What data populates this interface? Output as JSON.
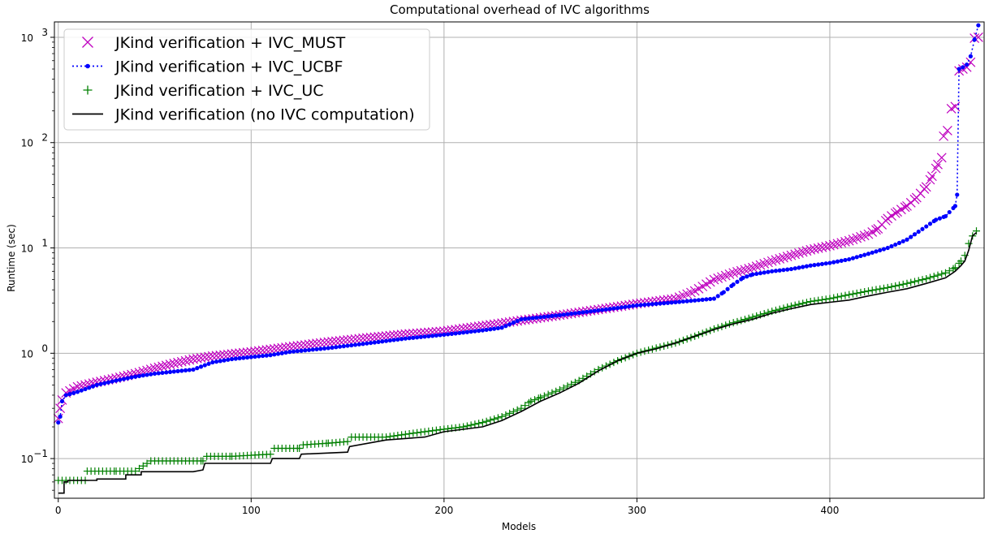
{
  "chart_data": {
    "type": "line",
    "title": "Computational overhead of IVC algorithms",
    "xlabel": "Models",
    "ylabel": "Runtime (sec)",
    "xlim": [
      -2,
      480
    ],
    "ylim": [
      0.042,
      1400
    ],
    "yscale": "log",
    "grid": true,
    "legend_position": "top-left",
    "x_ticks": [
      0,
      100,
      200,
      300,
      400
    ],
    "x_tick_labels": [
      "0",
      "100",
      "200",
      "300",
      "400"
    ],
    "y_ticks": [
      0.1,
      1,
      10,
      100,
      1000
    ],
    "y_tick_labels": [
      {
        "base": "10",
        "exp": "−1"
      },
      {
        "base": "10",
        "exp": "0"
      },
      {
        "base": "10",
        "exp": "1"
      },
      {
        "base": "10",
        "exp": "2"
      },
      {
        "base": "10",
        "exp": "3"
      }
    ],
    "series": [
      {
        "name": "JKind verification + IVC_MUST",
        "color": "#bf00bf",
        "marker": "x",
        "line": "none",
        "points": [
          [
            0,
            0.24
          ],
          [
            1,
            0.3
          ],
          [
            2,
            0.36
          ],
          [
            4,
            0.42
          ],
          [
            10,
            0.48
          ],
          [
            20,
            0.53
          ],
          [
            30,
            0.58
          ],
          [
            40,
            0.64
          ],
          [
            50,
            0.72
          ],
          [
            60,
            0.8
          ],
          [
            70,
            0.88
          ],
          [
            80,
            0.94
          ],
          [
            100,
            1.03
          ],
          [
            120,
            1.15
          ],
          [
            140,
            1.28
          ],
          [
            160,
            1.4
          ],
          [
            180,
            1.52
          ],
          [
            200,
            1.62
          ],
          [
            220,
            1.82
          ],
          [
            240,
            2.05
          ],
          [
            260,
            2.3
          ],
          [
            280,
            2.6
          ],
          [
            300,
            2.95
          ],
          [
            320,
            3.3
          ],
          [
            330,
            3.9
          ],
          [
            340,
            5.0
          ],
          [
            350,
            5.8
          ],
          [
            360,
            6.5
          ],
          [
            370,
            7.5
          ],
          [
            380,
            8.5
          ],
          [
            390,
            9.6
          ],
          [
            400,
            10.5
          ],
          [
            410,
            11.7
          ],
          [
            420,
            13.5
          ],
          [
            425,
            15.2
          ],
          [
            430,
            19.0
          ],
          [
            435,
            22.0
          ],
          [
            440,
            25.0
          ],
          [
            445,
            30.0
          ],
          [
            450,
            38.0
          ],
          [
            453,
            48.0
          ],
          [
            456,
            62.0
          ],
          [
            458,
            72.0
          ],
          [
            459,
            115.0
          ],
          [
            461,
            130.0
          ],
          [
            463,
            210.0
          ],
          [
            465,
            220.0
          ],
          [
            467,
            480.0
          ],
          [
            469,
            500.0
          ],
          [
            471,
            520.0
          ],
          [
            473,
            580.0
          ],
          [
            475,
            980.0
          ],
          [
            477,
            1000.0
          ]
        ]
      },
      {
        "name": "JKind verification + IVC_UCBF",
        "color": "#0000ff",
        "marker": "dot",
        "line": "dotted",
        "points": [
          [
            0,
            0.22
          ],
          [
            1,
            0.25
          ],
          [
            2,
            0.35
          ],
          [
            4,
            0.4
          ],
          [
            10,
            0.43
          ],
          [
            20,
            0.5
          ],
          [
            30,
            0.55
          ],
          [
            40,
            0.6
          ],
          [
            50,
            0.64
          ],
          [
            60,
            0.67
          ],
          [
            70,
            0.7
          ],
          [
            80,
            0.82
          ],
          [
            90,
            0.88
          ],
          [
            100,
            0.92
          ],
          [
            110,
            0.96
          ],
          [
            120,
            1.03
          ],
          [
            140,
            1.12
          ],
          [
            160,
            1.24
          ],
          [
            180,
            1.38
          ],
          [
            200,
            1.5
          ],
          [
            220,
            1.65
          ],
          [
            230,
            1.75
          ],
          [
            240,
            2.1
          ],
          [
            260,
            2.3
          ],
          [
            280,
            2.55
          ],
          [
            300,
            2.85
          ],
          [
            320,
            3.05
          ],
          [
            340,
            3.3
          ],
          [
            345,
            3.8
          ],
          [
            350,
            4.5
          ],
          [
            355,
            5.2
          ],
          [
            360,
            5.6
          ],
          [
            370,
            6.0
          ],
          [
            380,
            6.3
          ],
          [
            390,
            6.8
          ],
          [
            400,
            7.2
          ],
          [
            410,
            7.8
          ],
          [
            420,
            8.8
          ],
          [
            430,
            10.0
          ],
          [
            440,
            12.0
          ],
          [
            450,
            16.0
          ],
          [
            455,
            18.5
          ],
          [
            460,
            20.0
          ],
          [
            465,
            25.0
          ],
          [
            466,
            32.0
          ],
          [
            467,
            500.0
          ],
          [
            469,
            520.0
          ],
          [
            471,
            550.0
          ],
          [
            473,
            660.0
          ],
          [
            475,
            950.0
          ],
          [
            477,
            1300.0
          ]
        ]
      },
      {
        "name": "JKind verification + IVC_UC",
        "color": "#008000",
        "marker": "plus",
        "line": "none",
        "points": [
          [
            0,
            0.062
          ],
          [
            10,
            0.062
          ],
          [
            14,
            0.062
          ],
          [
            15,
            0.076
          ],
          [
            30,
            0.076
          ],
          [
            40,
            0.076
          ],
          [
            44,
            0.085
          ],
          [
            48,
            0.095
          ],
          [
            60,
            0.095
          ],
          [
            75,
            0.095
          ],
          [
            77,
            0.105
          ],
          [
            90,
            0.105
          ],
          [
            110,
            0.11
          ],
          [
            112,
            0.125
          ],
          [
            125,
            0.125
          ],
          [
            127,
            0.135
          ],
          [
            140,
            0.14
          ],
          [
            150,
            0.145
          ],
          [
            152,
            0.16
          ],
          [
            170,
            0.16
          ],
          [
            180,
            0.17
          ],
          [
            190,
            0.18
          ],
          [
            200,
            0.19
          ],
          [
            210,
            0.2
          ],
          [
            220,
            0.22
          ],
          [
            230,
            0.25
          ],
          [
            240,
            0.3
          ],
          [
            245,
            0.35
          ],
          [
            250,
            0.38
          ],
          [
            260,
            0.45
          ],
          [
            270,
            0.55
          ],
          [
            280,
            0.7
          ],
          [
            290,
            0.85
          ],
          [
            300,
            1.0
          ],
          [
            310,
            1.12
          ],
          [
            320,
            1.25
          ],
          [
            330,
            1.45
          ],
          [
            340,
            1.7
          ],
          [
            350,
            1.95
          ],
          [
            360,
            2.2
          ],
          [
            370,
            2.5
          ],
          [
            380,
            2.8
          ],
          [
            390,
            3.1
          ],
          [
            400,
            3.3
          ],
          [
            410,
            3.6
          ],
          [
            420,
            3.9
          ],
          [
            430,
            4.2
          ],
          [
            440,
            4.6
          ],
          [
            450,
            5.1
          ],
          [
            460,
            5.8
          ],
          [
            465,
            6.5
          ],
          [
            468,
            7.5
          ],
          [
            470,
            8.5
          ],
          [
            472,
            11.0
          ],
          [
            474,
            13.0
          ],
          [
            476,
            14.5
          ]
        ]
      },
      {
        "name": "JKind verification (no IVC computation)",
        "color": "#000000",
        "marker": "none",
        "line": "solid",
        "points": [
          [
            0,
            0.047
          ],
          [
            3,
            0.047
          ],
          [
            3,
            0.06
          ],
          [
            5,
            0.06
          ],
          [
            5,
            0.062
          ],
          [
            20,
            0.062
          ],
          [
            20,
            0.064
          ],
          [
            35,
            0.064
          ],
          [
            35,
            0.07
          ],
          [
            43,
            0.07
          ],
          [
            43,
            0.075
          ],
          [
            70,
            0.075
          ],
          [
            75,
            0.078
          ],
          [
            76,
            0.09
          ],
          [
            110,
            0.09
          ],
          [
            111,
            0.1
          ],
          [
            125,
            0.1
          ],
          [
            126,
            0.11
          ],
          [
            150,
            0.115
          ],
          [
            151,
            0.13
          ],
          [
            170,
            0.15
          ],
          [
            190,
            0.16
          ],
          [
            200,
            0.18
          ],
          [
            220,
            0.2
          ],
          [
            230,
            0.23
          ],
          [
            240,
            0.28
          ],
          [
            250,
            0.35
          ],
          [
            260,
            0.42
          ],
          [
            270,
            0.52
          ],
          [
            280,
            0.68
          ],
          [
            290,
            0.85
          ],
          [
            300,
            1.0
          ],
          [
            310,
            1.1
          ],
          [
            320,
            1.25
          ],
          [
            330,
            1.45
          ],
          [
            340,
            1.68
          ],
          [
            350,
            1.9
          ],
          [
            360,
            2.1
          ],
          [
            370,
            2.4
          ],
          [
            380,
            2.65
          ],
          [
            390,
            2.9
          ],
          [
            400,
            3.05
          ],
          [
            410,
            3.2
          ],
          [
            420,
            3.5
          ],
          [
            430,
            3.8
          ],
          [
            440,
            4.1
          ],
          [
            450,
            4.6
          ],
          [
            460,
            5.2
          ],
          [
            465,
            6.0
          ],
          [
            468,
            6.8
          ],
          [
            470,
            7.5
          ],
          [
            472,
            9.5
          ],
          [
            474,
            13.0
          ],
          [
            476,
            14.0
          ]
        ]
      }
    ]
  }
}
